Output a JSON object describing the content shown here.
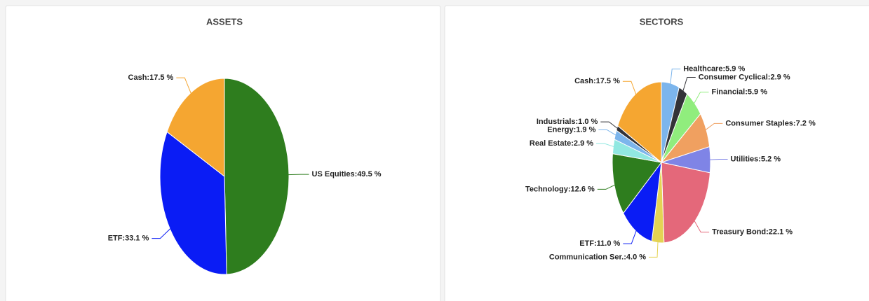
{
  "chart_data": [
    {
      "type": "pie",
      "title": "ASSETS",
      "values": [
        49.5,
        33.1,
        17.5
      ],
      "value_labels": [
        "US Equities:49.5 %",
        "ETF:33.1 %",
        "Cash:17.5 %"
      ],
      "colors": [
        "#2e7d1e",
        "#0a1cf5",
        "#f5a631"
      ]
    },
    {
      "type": "pie",
      "title": "SECTORS",
      "values": [
        5.9,
        2.9,
        5.9,
        7.2,
        5.2,
        22.1,
        4.0,
        11.0,
        12.6,
        2.9,
        1.9,
        1.0,
        17.5
      ],
      "value_labels": [
        "Healthcare:5.9 %",
        "Consumer Cyclical:2.9 %",
        "Financial:5.9 %",
        "Consumer Staples:7.2 %",
        "Utilities:5.2 %",
        "Treasury Bond:22.1 %",
        "Communication Ser.:4.0 %",
        "ETF:11.0 %",
        "Technology:12.6 %",
        "Real Estate:2.9 %",
        "Energy:1.9 %",
        "Industrials:1.0 %",
        "Cash:17.5 %"
      ],
      "colors": [
        "#7cb5ec",
        "#333338",
        "#90ed7d",
        "#f0a060",
        "#7f84e6",
        "#e4687a",
        "#e4d354",
        "#0a1cf5",
        "#2e7d1e",
        "#91e8e1",
        "#7cb5ec",
        "#333338",
        "#f5a631"
      ]
    }
  ]
}
